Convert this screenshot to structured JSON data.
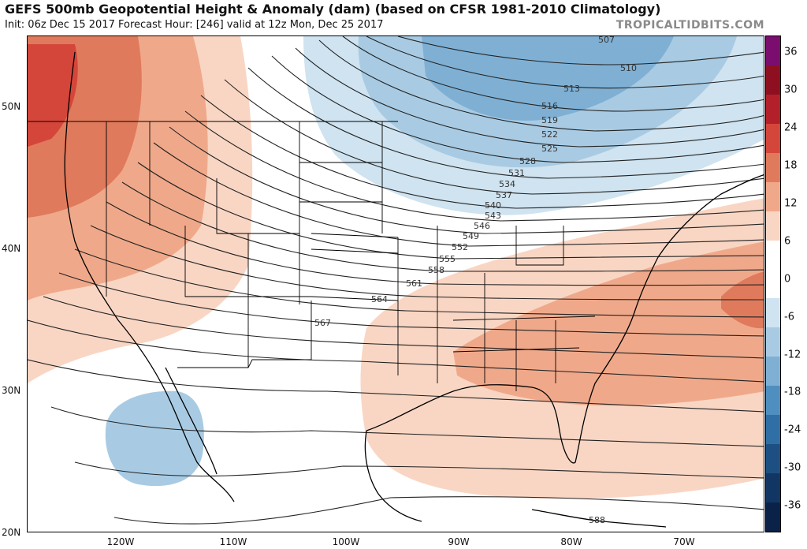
{
  "header": {
    "title": "GEFS 500mb Geopotential Height & Anomaly (dam) (based on CFSR 1981-2010 Climatology)",
    "subtitle": "Init: 06z Dec 15 2017   Forecast Hour: [246]   valid at 12z Mon, Dec 25 2017",
    "brand": "TROPICALTIDBITS.COM"
  },
  "map": {
    "lat_labels": [
      "50N",
      "40N",
      "30N",
      "20N"
    ],
    "lon_labels": [
      "120W",
      "110W",
      "100W",
      "90W",
      "80W",
      "70W"
    ],
    "contour_labels": [
      "507",
      "510",
      "513",
      "516",
      "519",
      "522",
      "525",
      "528",
      "531",
      "534",
      "537",
      "540",
      "543",
      "546",
      "549",
      "552",
      "555",
      "558",
      "561",
      "564",
      "567",
      "588"
    ]
  },
  "colorbar": {
    "labels": [
      "36",
      "30",
      "24",
      "18",
      "12",
      "6",
      "0",
      "-6",
      "-12",
      "-18",
      "-24",
      "-30",
      "-36"
    ],
    "colors": [
      "#7a0d6e",
      "#8e1020",
      "#b3202a",
      "#d4463a",
      "#e07a5c",
      "#efa98a",
      "#f9d6c4",
      "#ffffff",
      "#ffffff",
      "#cfe3f0",
      "#a8cbe3",
      "#7fb0d4",
      "#4f8fc0",
      "#2f6fa6",
      "#1d4f82",
      "#123664",
      "#0a2247"
    ]
  }
}
